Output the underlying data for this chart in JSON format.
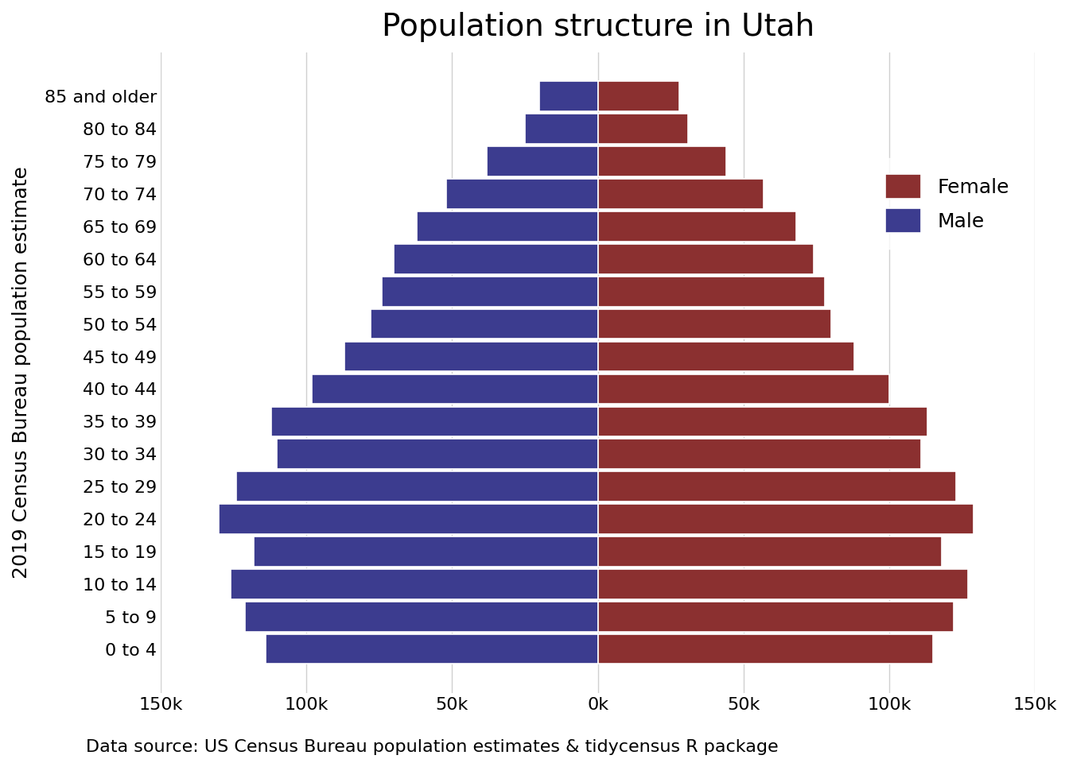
{
  "title": "Population structure in Utah",
  "ylabel": "2019 Census Bureau population estimate",
  "xlabel_note": "Data source: US Census Bureau population estimates & tidycensus R package",
  "age_groups": [
    "0 to 4",
    "5 to 9",
    "10 to 14",
    "15 to 19",
    "20 to 24",
    "25 to 29",
    "30 to 34",
    "35 to 39",
    "40 to 44",
    "45 to 49",
    "50 to 54",
    "55 to 59",
    "60 to 64",
    "65 to 69",
    "70 to 74",
    "75 to 79",
    "80 to 84",
    "85 and older"
  ],
  "male": [
    114000,
    121000,
    126000,
    118000,
    130000,
    124000,
    110000,
    112000,
    98000,
    87000,
    78000,
    74000,
    70000,
    62000,
    52000,
    38000,
    25000,
    20000
  ],
  "female": [
    115000,
    122000,
    127000,
    118000,
    129000,
    123000,
    111000,
    113000,
    100000,
    88000,
    80000,
    78000,
    74000,
    68000,
    57000,
    44000,
    31000,
    28000
  ],
  "male_color": "#3C3C8F",
  "female_color": "#8B3030",
  "background_color": "#FFFFFF",
  "grid_color": "#D0D0D0",
  "bar_edge_color": "#FFFFFF",
  "xlim": 150000,
  "title_fontsize": 28,
  "axis_label_fontsize": 18,
  "tick_fontsize": 16,
  "legend_fontsize": 18,
  "note_fontsize": 16
}
